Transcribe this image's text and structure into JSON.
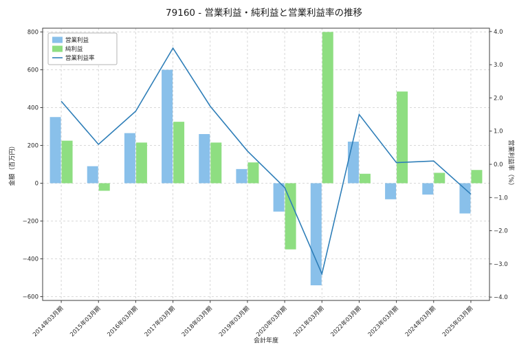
{
  "title": "79160 - 営業利益・純利益と営業利益率の推移",
  "chart_data": {
    "type": "combo_bar_line",
    "title": "79160 - 営業利益・純利益と営業利益率の推移",
    "xlabel": "会計年度",
    "ylabel_left": "金額（百万円）",
    "ylabel_right": "営業利益率（%）",
    "categories": [
      "2014年03月期",
      "2015年03月期",
      "2016年03月期",
      "2017年03月期",
      "2018年03月期",
      "2019年03月期",
      "2020年03月期",
      "2021年03月期",
      "2022年03月期",
      "2023年03月期",
      "2024年03月期",
      "2025年03月期"
    ],
    "series": [
      {
        "name": "営業利益",
        "type": "bar",
        "axis": "left",
        "color": "#89C0EA",
        "values": [
          350,
          90,
          265,
          600,
          260,
          75,
          -150,
          -540,
          220,
          -85,
          -60,
          -160
        ]
      },
      {
        "name": "純利益",
        "type": "bar",
        "axis": "left",
        "color": "#8EDE81",
        "values": [
          225,
          -40,
          215,
          325,
          215,
          110,
          -350,
          800,
          50,
          485,
          55,
          70
        ]
      },
      {
        "name": "営業利益率",
        "type": "line",
        "axis": "right",
        "color": "#2E7EB8",
        "values": [
          1.9,
          0.6,
          1.6,
          3.5,
          1.75,
          0.4,
          -0.7,
          -3.3,
          1.5,
          0.05,
          0.1,
          -0.9
        ]
      }
    ],
    "ylim_left": [
      -620,
      820
    ],
    "yticks_left": [
      800,
      600,
      400,
      200,
      0,
      -200,
      -400,
      -600
    ],
    "ylim_right": [
      -4.1,
      4.1
    ],
    "yticks_right": [
      4.0,
      3.0,
      2.0,
      1.0,
      0.0,
      -1.0,
      -2.0,
      -3.0,
      -4.0
    ],
    "grid": true,
    "grid_style": "dashed",
    "legend_position": "upper-left"
  }
}
